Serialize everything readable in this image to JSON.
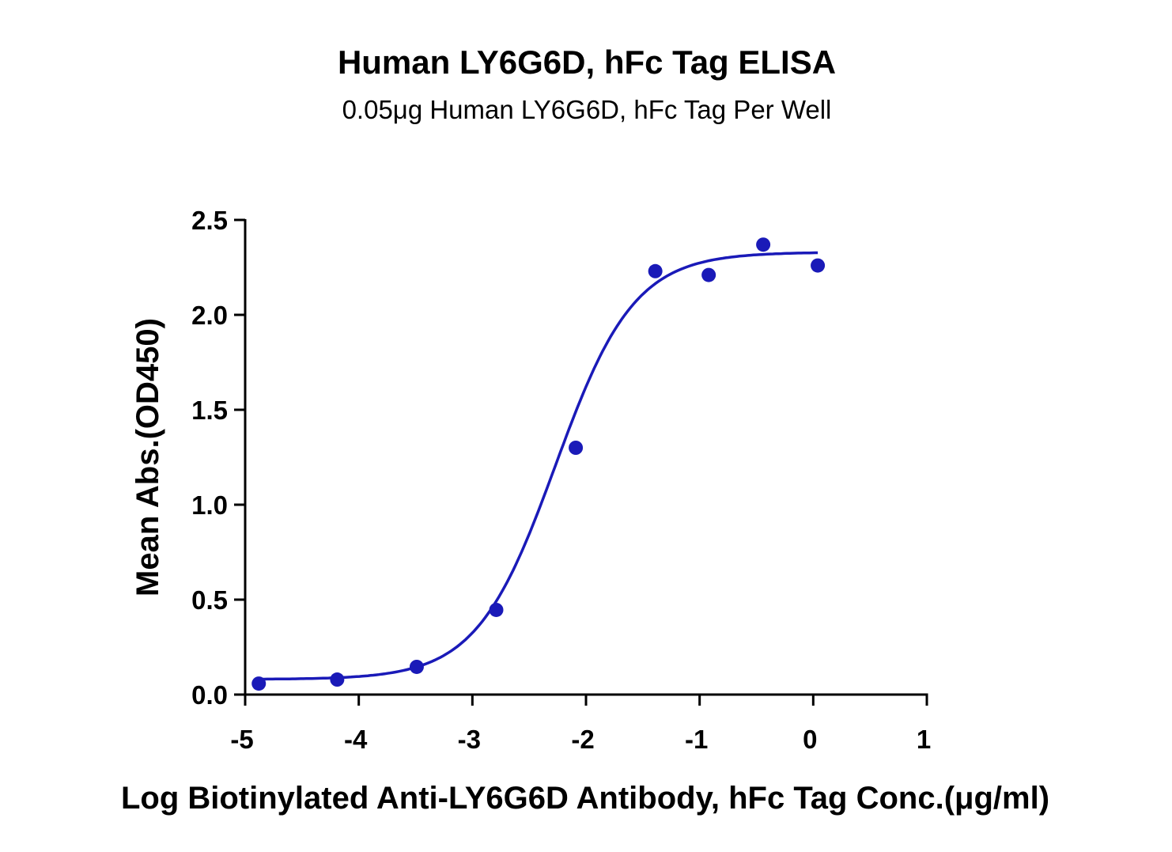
{
  "chart_data": {
    "type": "scatter",
    "title": "Human LY6G6D, hFc Tag ELISA",
    "subtitle": "0.05μg Human LY6G6D, hFc Tag Per Well",
    "xlabel": "Log Biotinylated Anti-LY6G6D Antibody, hFc Tag Conc.(μg/ml)",
    "ylabel": "Mean Abs.(OD450)",
    "xlim": [
      -5,
      1
    ],
    "ylim": [
      0,
      2.5
    ],
    "xticks": [
      "-5",
      "-4",
      "-3",
      "-2",
      "-1",
      "0",
      "1"
    ],
    "xtick_values": [
      -5,
      -4,
      -3,
      -2,
      -1,
      0,
      1
    ],
    "yticks": [
      "0.0",
      "0.5",
      "1.0",
      "1.5",
      "2.0",
      "2.5"
    ],
    "ytick_values": [
      0,
      0.5,
      1.0,
      1.5,
      2.0,
      2.5
    ],
    "grid": false,
    "color": "#1a1ab8",
    "series": [
      {
        "name": "Mean Abs.",
        "x": [
          -4.88,
          -4.19,
          -3.49,
          -2.79,
          -2.09,
          -1.39,
          -0.92,
          -0.44,
          0.04
        ],
        "y": [
          0.058,
          0.079,
          0.146,
          0.446,
          1.3,
          2.23,
          2.21,
          2.37,
          2.26
        ]
      }
    ],
    "fit": {
      "model": "4PL",
      "bottom": 0.08,
      "top": 2.33,
      "logEC50": -2.27,
      "hill": 1.25,
      "x_range": [
        -4.88,
        0.04
      ]
    }
  }
}
